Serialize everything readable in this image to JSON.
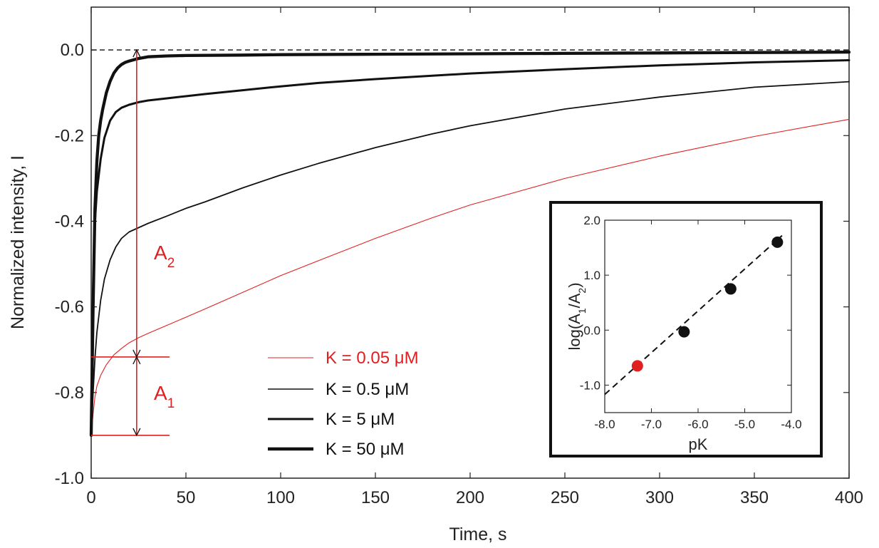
{
  "chart_data": {
    "main": {
      "type": "line",
      "xlabel": "Time, s",
      "ylabel": "Normalized intensity, I",
      "xlim": [
        0,
        400
      ],
      "ylim": [
        -1.0,
        0.1
      ],
      "xticks": [
        0,
        50,
        100,
        150,
        200,
        250,
        300,
        350,
        400
      ],
      "xtick_labels": [
        "0",
        "50",
        "100",
        "150",
        "200",
        "250",
        "300",
        "350",
        "400"
      ],
      "yticks": [
        0.0,
        -0.2,
        -0.4,
        -0.6,
        -0.8,
        -1.0
      ],
      "ytick_labels": [
        "0.0",
        "-0.2",
        "-0.4",
        "-0.6",
        "-0.8",
        "-1.0"
      ],
      "zero_reference": 0.0,
      "series": [
        {
          "name": "K = 0.05 μM",
          "color": "#e02020",
          "x": [
            0,
            1,
            2,
            3,
            5,
            8,
            12,
            16,
            20,
            25,
            30,
            40,
            50,
            60,
            80,
            100,
            120,
            150,
            180,
            200,
            250,
            300,
            350,
            400
          ],
          "y": [
            -0.9,
            -0.85,
            -0.81,
            -0.785,
            -0.76,
            -0.735,
            -0.712,
            -0.697,
            -0.684,
            -0.672,
            -0.662,
            -0.643,
            -0.624,
            -0.605,
            -0.566,
            -0.527,
            -0.492,
            -0.44,
            -0.392,
            -0.362,
            -0.3,
            -0.248,
            -0.202,
            -0.162
          ]
        },
        {
          "name": "K = 0.5 μM",
          "color": "#111111",
          "x": [
            0,
            1,
            2,
            3,
            5,
            7,
            10,
            13,
            16,
            20,
            25,
            30,
            40,
            50,
            60,
            80,
            100,
            120,
            150,
            180,
            200,
            250,
            300,
            350,
            400
          ],
          "y": [
            -0.9,
            -0.8,
            -0.72,
            -0.66,
            -0.585,
            -0.535,
            -0.49,
            -0.46,
            -0.44,
            -0.425,
            -0.415,
            -0.405,
            -0.388,
            -0.37,
            -0.355,
            -0.322,
            -0.292,
            -0.265,
            -0.228,
            -0.196,
            -0.177,
            -0.138,
            -0.11,
            -0.087,
            -0.074
          ]
        },
        {
          "name": "K = 5 μM",
          "color": "#111111",
          "x": [
            0,
            1,
            2,
            3,
            5,
            7,
            10,
            13,
            16,
            20,
            25,
            30,
            40,
            50,
            60,
            80,
            100,
            120,
            150,
            200,
            250,
            300,
            350,
            400
          ],
          "y": [
            -0.9,
            -0.6,
            -0.4,
            -0.33,
            -0.255,
            -0.205,
            -0.165,
            -0.145,
            -0.135,
            -0.128,
            -0.122,
            -0.118,
            -0.113,
            -0.108,
            -0.103,
            -0.094,
            -0.085,
            -0.077,
            -0.068,
            -0.055,
            -0.045,
            -0.036,
            -0.029,
            -0.024
          ]
        },
        {
          "name": "K = 50 μM",
          "color": "#111111",
          "x": [
            0,
            1,
            2,
            3,
            4,
            5,
            6,
            8,
            10,
            12,
            14,
            16,
            18,
            20,
            25,
            30,
            40,
            50,
            80,
            100,
            150,
            200,
            250,
            300,
            350,
            400
          ],
          "y": [
            -0.9,
            -0.6,
            -0.37,
            -0.26,
            -0.2,
            -0.165,
            -0.14,
            -0.1,
            -0.073,
            -0.054,
            -0.042,
            -0.034,
            -0.029,
            -0.026,
            -0.02,
            -0.016,
            -0.014,
            -0.013,
            -0.012,
            -0.011,
            -0.01,
            -0.009,
            -0.008,
            -0.007,
            -0.006,
            -0.005
          ]
        }
      ],
      "annotations": {
        "A1": {
          "label": "A",
          "subscript": "1",
          "y_from": -0.9,
          "y_to": -0.717,
          "x": 24
        },
        "A2": {
          "label": "A",
          "subscript": "2",
          "y_from": -0.717,
          "y_to": 0.0,
          "x": 24
        }
      }
    },
    "inset": {
      "type": "scatter",
      "xlabel": "pK",
      "ylabel": "log(A1/A2)",
      "ylabel_main": "log(A",
      "ylabel_sub1": "1",
      "ylabel_slash": "/A",
      "ylabel_sub2": "2",
      "ylabel_close": ")",
      "xlim": [
        -8.0,
        -4.0
      ],
      "ylim": [
        -1.5,
        2.0
      ],
      "xticks": [
        -8.0,
        -7.0,
        -6.0,
        -5.0,
        -4.0
      ],
      "xtick_labels": [
        "-8.0",
        "-7.0",
        "-6.0",
        "-5.0",
        "-4.0"
      ],
      "yticks": [
        2.0,
        1.0,
        0.0,
        -1.0
      ],
      "ytick_labels": [
        "2.0",
        "1.0",
        "0.0",
        "-1.0"
      ],
      "points": [
        {
          "x": -7.3,
          "y": -0.65,
          "color": "#e02020"
        },
        {
          "x": -6.3,
          "y": -0.03,
          "color": "#111111"
        },
        {
          "x": -5.3,
          "y": 0.75,
          "color": "#111111"
        },
        {
          "x": -4.3,
          "y": 1.6,
          "color": "#111111"
        }
      ],
      "fit_line": {
        "x": [
          -8.0,
          -4.2
        ],
        "y": [
          -1.17,
          1.72
        ]
      }
    }
  },
  "legend": [
    {
      "label": "K = 0.05 μM",
      "color": "#e02020"
    },
    {
      "label": "K = 0.5 μM",
      "color": "#111111"
    },
    {
      "label": "K = 5 μM",
      "color": "#111111"
    },
    {
      "label": "K = 50 μM",
      "color": "#111111"
    }
  ],
  "colors": {
    "accent_red": "#e02020",
    "ink": "#111111"
  }
}
